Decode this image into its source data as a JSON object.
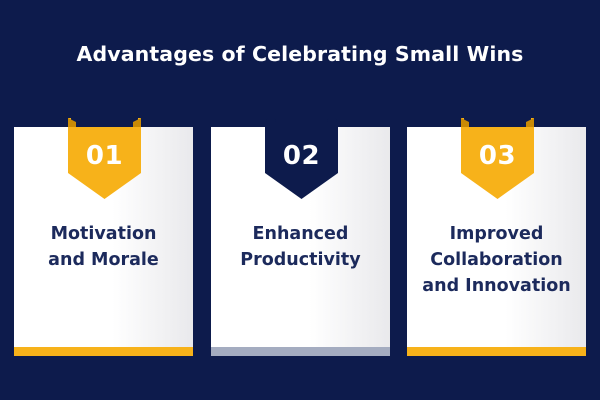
{
  "title": "Advantages of Celebrating Small Wins",
  "colors": {
    "background": "#0d1b4c",
    "accent_yellow": "#f7b21a",
    "accent_yellow_dark": "#c98a05",
    "navy": "#0d1b4c",
    "card_text": "#1c2a5c",
    "slate_bar": "#a4acc0"
  },
  "cards": [
    {
      "number": "01",
      "line1": "Motivation",
      "line2": "and Morale",
      "line3": "",
      "badge_color": "#f7b21a",
      "bar_color": "#f7b21a"
    },
    {
      "number": "02",
      "line1": "Enhanced",
      "line2": "Productivity",
      "line3": "",
      "badge_color": "#0d1b4c",
      "bar_color": "#a4acc0"
    },
    {
      "number": "03",
      "line1": "Improved",
      "line2": "Collaboration",
      "line3": "and Innovation",
      "badge_color": "#f7b21a",
      "bar_color": "#f7b21a"
    }
  ]
}
